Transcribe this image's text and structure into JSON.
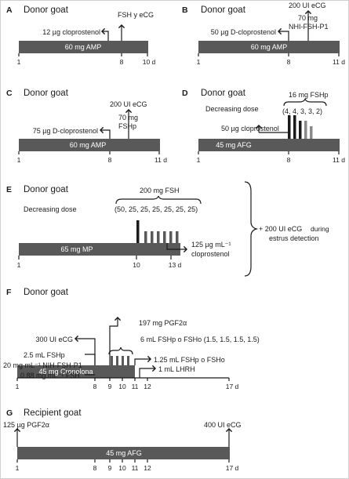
{
  "panels": {
    "A": {
      "letter": "A",
      "title": "Donor goat",
      "bar": "60 mg AMP",
      "label_left": "12 µg cloprostenol",
      "label_top": "FSH y eCG",
      "ticks": [
        "1",
        "8",
        "10 d"
      ]
    },
    "B": {
      "letter": "B",
      "title": "Donor goat",
      "bar": "60 mg AMP",
      "label_left": "50 µg D-cloprostenol",
      "label_top": "200 UI eCG",
      "label_mid1": "70 mg",
      "label_mid2": "NHI-FSH-P1",
      "ticks": [
        "1",
        "8",
        "11 d"
      ]
    },
    "C": {
      "letter": "C",
      "title": "Donor goat",
      "bar": "60 mg AMP",
      "label_left": "75 µg D-cloprostenol",
      "label_top": "200 UI eCG",
      "label_mid1": "70 mg",
      "label_mid2": "FSHp",
      "ticks": [
        "1",
        "8",
        "11 d"
      ]
    },
    "D": {
      "letter": "D",
      "title": "Donor goat",
      "bar": "45 mg AFG",
      "label_dose_total": "16 mg FSHp",
      "label_decr": "Decreasing dose",
      "label_seq": "(4, 4, 3, 3, 2)",
      "label_left": "50 µg cloprostenol",
      "ticks": [
        "1",
        "8",
        "11 d"
      ]
    },
    "E": {
      "letter": "E",
      "title": "Donor goat",
      "bar": "65 mg MP",
      "label_dose_total": "200 mg FSH",
      "label_decr": "Decreasing dose",
      "label_seq": "(50, 25, 25, 25, 25, 25, 25)",
      "label_clop1": "125 µg mL⁻¹",
      "label_clop2": "cloprostenol",
      "side_note1": "+ 200 UI eCG",
      "side_note1b": "during",
      "side_note2": "estrus detection",
      "ticks": [
        "1",
        "10",
        "13 d"
      ]
    },
    "F": {
      "letter": "F",
      "title": "Donor goat",
      "bar": "45 mg Cronolona",
      "label_ecg": "300 UI eCG",
      "label_pgf": "197 mg PGF2α",
      "label_f1": "2.5 mL FSHp",
      "label_f2": "20 mg mL⁻¹ NIH-FSH-P1",
      "label_f3": "0.88 mg mL⁻¹ FSH",
      "label_fsho": "6 mL FSHp o FSHo (1.5, 1.5, 1.5, 1.5)",
      "label_r1": "1.25 mL FSHp o FSHo",
      "label_r2": "1 mL LHRH",
      "ticks": [
        "1",
        "8",
        "9",
        "10",
        "11",
        "12",
        "17 d"
      ]
    },
    "G": {
      "letter": "G",
      "title": "Recipient goat",
      "bar": "45 mg AFG",
      "label_left": "125 µg PGF2α",
      "label_right": "400 UI eCG",
      "ticks": [
        "1",
        "8",
        "9",
        "10",
        "11",
        "12",
        "17 d"
      ]
    }
  }
}
